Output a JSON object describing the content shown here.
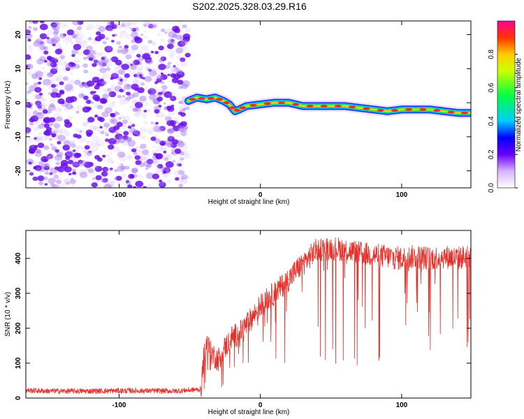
{
  "title": "S202.2025.328.03.29.R16",
  "colors": {
    "background": "#ffffff",
    "axis": "#000000",
    "snr_line": "#e8302a",
    "noise_dots": "#8a3cf0",
    "track_core": "#ff2a2a"
  },
  "chart_data": [
    {
      "type": "heatmap",
      "title": "S202.2025.328.03.29.R16",
      "xlabel": "Height of straight line (km)",
      "ylabel": "Frequency (Hz)",
      "xlim": [
        -166,
        149
      ],
      "ylim": [
        -25,
        24
      ],
      "xticks": [
        -100,
        0,
        100
      ],
      "yticks": [
        -20,
        -10,
        0,
        10,
        20
      ],
      "grid": false,
      "noise_region_x": [
        -166,
        -51
      ],
      "track": {
        "x": [
          -51,
          -45,
          -38,
          -32,
          -26,
          -22,
          -18,
          -15,
          -10,
          0,
          10,
          20,
          30,
          40,
          50,
          60,
          70,
          80,
          90,
          100,
          110,
          120,
          130,
          140,
          149
        ],
        "freq": [
          0.5,
          1.5,
          1.0,
          1.5,
          0.5,
          -0.5,
          -2.5,
          -2.0,
          -1.0,
          -0.5,
          0.0,
          0.0,
          -1.0,
          -1.0,
          -1.0,
          -1.0,
          -1.5,
          -2.0,
          -2.5,
          -2.0,
          -2.0,
          -2.0,
          -2.5,
          -3.0,
          -3.0
        ]
      },
      "colorbar": {
        "label": "Normalized spectral amplitude",
        "range": [
          0,
          1
        ],
        "ticks": [
          "0.0",
          "0.2",
          "0.4",
          "0.6",
          "0.8"
        ]
      }
    },
    {
      "type": "line",
      "xlabel": "Height of straight line (km)",
      "ylabel": "SNR (10 * v/v)",
      "xlim": [
        -166,
        149
      ],
      "ylim": [
        0,
        480
      ],
      "xticks": [
        -100,
        0,
        100
      ],
      "yticks": [
        0,
        100,
        200,
        300,
        400
      ],
      "grid": false,
      "series": [
        {
          "name": "SNR",
          "x": [
            -166,
            -150,
            -120,
            -90,
            -60,
            -42,
            -40,
            -38,
            -35,
            -30,
            -25,
            -20,
            -15,
            -10,
            -5,
            0,
            5,
            10,
            15,
            20,
            25,
            30,
            35,
            40,
            50,
            60,
            70,
            80,
            90,
            100,
            110,
            120,
            130,
            140,
            149
          ],
          "y": [
            22,
            20,
            20,
            21,
            20,
            25,
            120,
            160,
            130,
            110,
            145,
            175,
            185,
            210,
            235,
            265,
            285,
            300,
            320,
            340,
            365,
            385,
            405,
            425,
            430,
            425,
            415,
            410,
            405,
            400,
            405,
            400,
            405,
            400,
            410
          ]
        }
      ]
    }
  ]
}
